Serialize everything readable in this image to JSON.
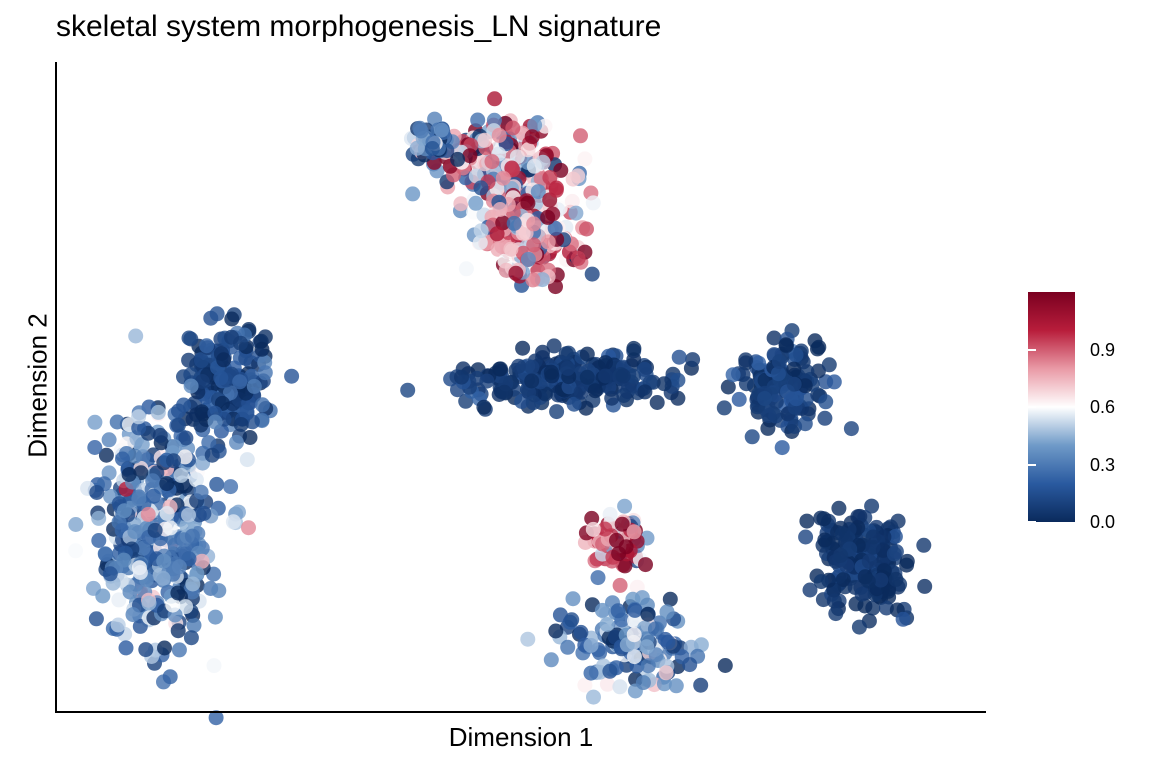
{
  "chart_data": {
    "type": "scatter",
    "title": "skeletal system morphogenesis_LN signature",
    "xlabel": "Dimension 1",
    "ylabel": "Dimension 2",
    "grid": false,
    "axis_ticks": false,
    "legend": {
      "type": "colorbar",
      "placement": "right",
      "min": 0.0,
      "max": 1.2,
      "ticks": [
        "0.0",
        "0.3",
        "0.6",
        "0.9"
      ],
      "colors": [
        "#0a2a5c",
        "#2a5aa0",
        "#6f9ac8",
        "#ffffff",
        "#e99aa6",
        "#b81d3b",
        "#7a0020"
      ]
    },
    "marker_opacity": 0.8,
    "clusters": [
      {
        "name": "",
        "center": [
          -1.6,
          1.55
        ],
        "spread": [
          0.55,
          0.28
        ],
        "count": 230,
        "score_mean": 0.65,
        "score_sd": 0.3
      },
      {
        "name": "",
        "center": [
          -2.35,
          1.75
        ],
        "spread": [
          0.18,
          0.14
        ],
        "count": 40,
        "score_mean": 0.3,
        "score_sd": 0.2
      },
      {
        "name": "",
        "center": [
          -1.3,
          1.0
        ],
        "spread": [
          0.42,
          0.3
        ],
        "count": 220,
        "score_mean": 0.72,
        "score_sd": 0.3
      },
      {
        "name": "",
        "center": [
          -4.6,
          -0.2
        ],
        "spread": [
          0.4,
          0.36
        ],
        "count": 200,
        "score_mean": 0.12,
        "score_sd": 0.1
      },
      {
        "name": "",
        "center": [
          -5.35,
          -1.35
        ],
        "spread": [
          0.55,
          0.75
        ],
        "count": 430,
        "score_mean": 0.32,
        "score_sd": 0.2
      },
      {
        "name": "",
        "center": [
          -0.9,
          -0.15
        ],
        "spread": [
          0.95,
          0.18
        ],
        "count": 240,
        "score_mean": 0.06,
        "score_sd": 0.06
      },
      {
        "name": "",
        "center": [
          1.45,
          -0.15
        ],
        "spread": [
          0.38,
          0.32
        ],
        "count": 150,
        "score_mean": 0.08,
        "score_sd": 0.07
      },
      {
        "name": "",
        "center": [
          2.35,
          -1.6
        ],
        "spread": [
          0.45,
          0.32
        ],
        "count": 200,
        "score_mean": 0.04,
        "score_sd": 0.05
      },
      {
        "name": "",
        "center": [
          -0.35,
          -1.45
        ],
        "spread": [
          0.3,
          0.2
        ],
        "count": 70,
        "score_mean": 0.8,
        "score_sd": 0.3
      },
      {
        "name": "",
        "center": [
          -0.2,
          -2.25
        ],
        "spread": [
          0.55,
          0.3
        ],
        "count": 170,
        "score_mean": 0.3,
        "score_sd": 0.2
      }
    ]
  }
}
